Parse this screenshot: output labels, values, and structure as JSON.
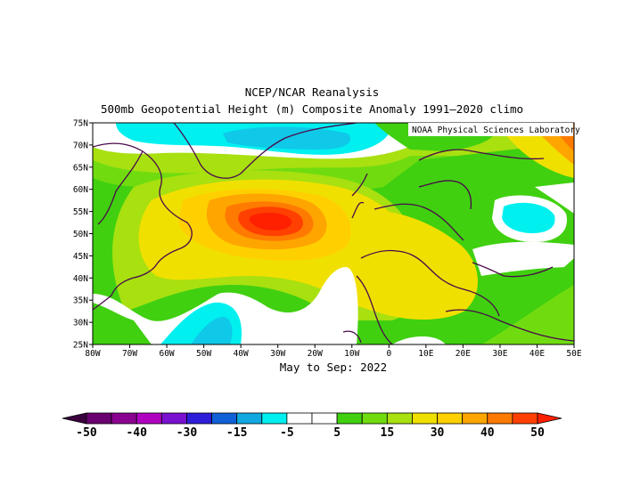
{
  "title_line1": "NCEP/NCAR Reanalysis",
  "title_line2": "500mb Geopotential Height (m) Composite Anomaly 1991–2020 climo",
  "credit": "NOAA Physical Sciences Laboratory",
  "period": "May to Sep: 2022",
  "lat_labels": [
    "75N",
    "70N",
    "65N",
    "60N",
    "55N",
    "50N",
    "45N",
    "40N",
    "35N",
    "30N",
    "25N"
  ],
  "lon_labels": [
    "80W",
    "70W",
    "60W",
    "50W",
    "40W",
    "30W",
    "20W",
    "10W",
    "0",
    "10E",
    "20E",
    "30E",
    "40E",
    "50E"
  ],
  "colorbar": {
    "colors": [
      "#6a0070",
      "#8a0090",
      "#b000c0",
      "#7a10d0",
      "#2d1dd9",
      "#1060d8",
      "#10a8e0",
      "#00f0f0",
      "#ffffff",
      "#ffffff",
      "#40d010",
      "#70dc10",
      "#a8e010",
      "#f0e000",
      "#ffd000",
      "#ffa500",
      "#ff7a00",
      "#ff4000"
    ],
    "left_arrow": "#3a003e",
    "right_arrow": "#ff2000",
    "labels": [
      "-50",
      "-40",
      "-30",
      "-15",
      "-5",
      "5",
      "15",
      "30",
      "40",
      "50"
    ]
  }
}
